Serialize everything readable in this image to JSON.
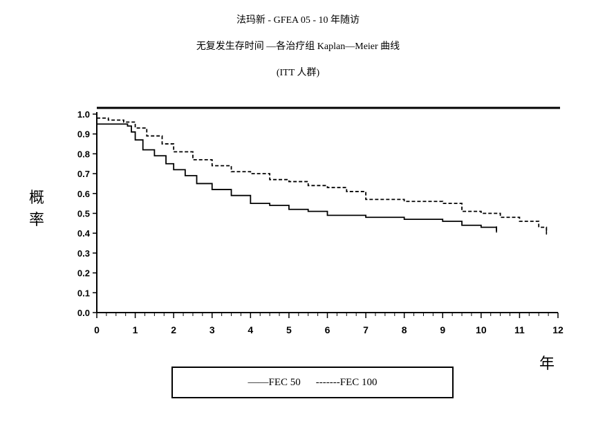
{
  "chart_data": {
    "type": "line",
    "title": "法玛新 - GFEA 05 - 10 年随访",
    "subtitle": "无复发生存时间 —各治疗组 Kaplan—Meier 曲线",
    "subtitle2": "(ITT 人群)",
    "xlabel": "年",
    "ylabel": [
      "概",
      "率"
    ],
    "xlim": [
      0,
      12
    ],
    "ylim": [
      0,
      1.0
    ],
    "x_ticks": [
      "0",
      "1",
      "2",
      "3",
      "4",
      "5",
      "6",
      "7",
      "8",
      "9",
      "10",
      "11",
      "12"
    ],
    "y_ticks": [
      "0.0",
      "0.1",
      "0.2",
      "0.3",
      "0.4",
      "0.5",
      "0.6",
      "0.7",
      "0.8",
      "0.9",
      "1.0"
    ],
    "legend": [
      "——FEC 50",
      "-------FEC 100"
    ],
    "legend_position": "bottom",
    "series": [
      {
        "name": "FEC 50",
        "style": "solid",
        "points": [
          [
            0,
            0.95
          ],
          [
            0.5,
            0.95
          ],
          [
            0.8,
            0.94
          ],
          [
            0.9,
            0.91
          ],
          [
            1.0,
            0.87
          ],
          [
            1.2,
            0.82
          ],
          [
            1.5,
            0.79
          ],
          [
            1.8,
            0.75
          ],
          [
            2.0,
            0.72
          ],
          [
            2.3,
            0.69
          ],
          [
            2.6,
            0.65
          ],
          [
            3.0,
            0.62
          ],
          [
            3.5,
            0.59
          ],
          [
            4.0,
            0.55
          ],
          [
            4.5,
            0.54
          ],
          [
            5.0,
            0.52
          ],
          [
            5.5,
            0.51
          ],
          [
            6.0,
            0.49
          ],
          [
            7.0,
            0.48
          ],
          [
            8.0,
            0.47
          ],
          [
            8.5,
            0.47
          ],
          [
            9.0,
            0.46
          ],
          [
            9.5,
            0.44
          ],
          [
            10.0,
            0.43
          ],
          [
            10.4,
            0.41
          ]
        ]
      },
      {
        "name": "FEC 100",
        "style": "dashed",
        "points": [
          [
            0,
            0.98
          ],
          [
            0.3,
            0.97
          ],
          [
            0.7,
            0.96
          ],
          [
            1.0,
            0.93
          ],
          [
            1.3,
            0.89
          ],
          [
            1.7,
            0.85
          ],
          [
            2.0,
            0.81
          ],
          [
            2.5,
            0.77
          ],
          [
            3.0,
            0.74
          ],
          [
            3.5,
            0.71
          ],
          [
            4.0,
            0.7
          ],
          [
            4.5,
            0.67
          ],
          [
            5.0,
            0.66
          ],
          [
            5.5,
            0.64
          ],
          [
            6.0,
            0.63
          ],
          [
            6.5,
            0.61
          ],
          [
            7.0,
            0.57
          ],
          [
            8.0,
            0.56
          ],
          [
            9.0,
            0.55
          ],
          [
            9.5,
            0.51
          ],
          [
            10.0,
            0.5
          ],
          [
            10.5,
            0.48
          ],
          [
            11.0,
            0.46
          ],
          [
            11.5,
            0.43
          ],
          [
            11.7,
            0.4
          ]
        ]
      }
    ]
  }
}
